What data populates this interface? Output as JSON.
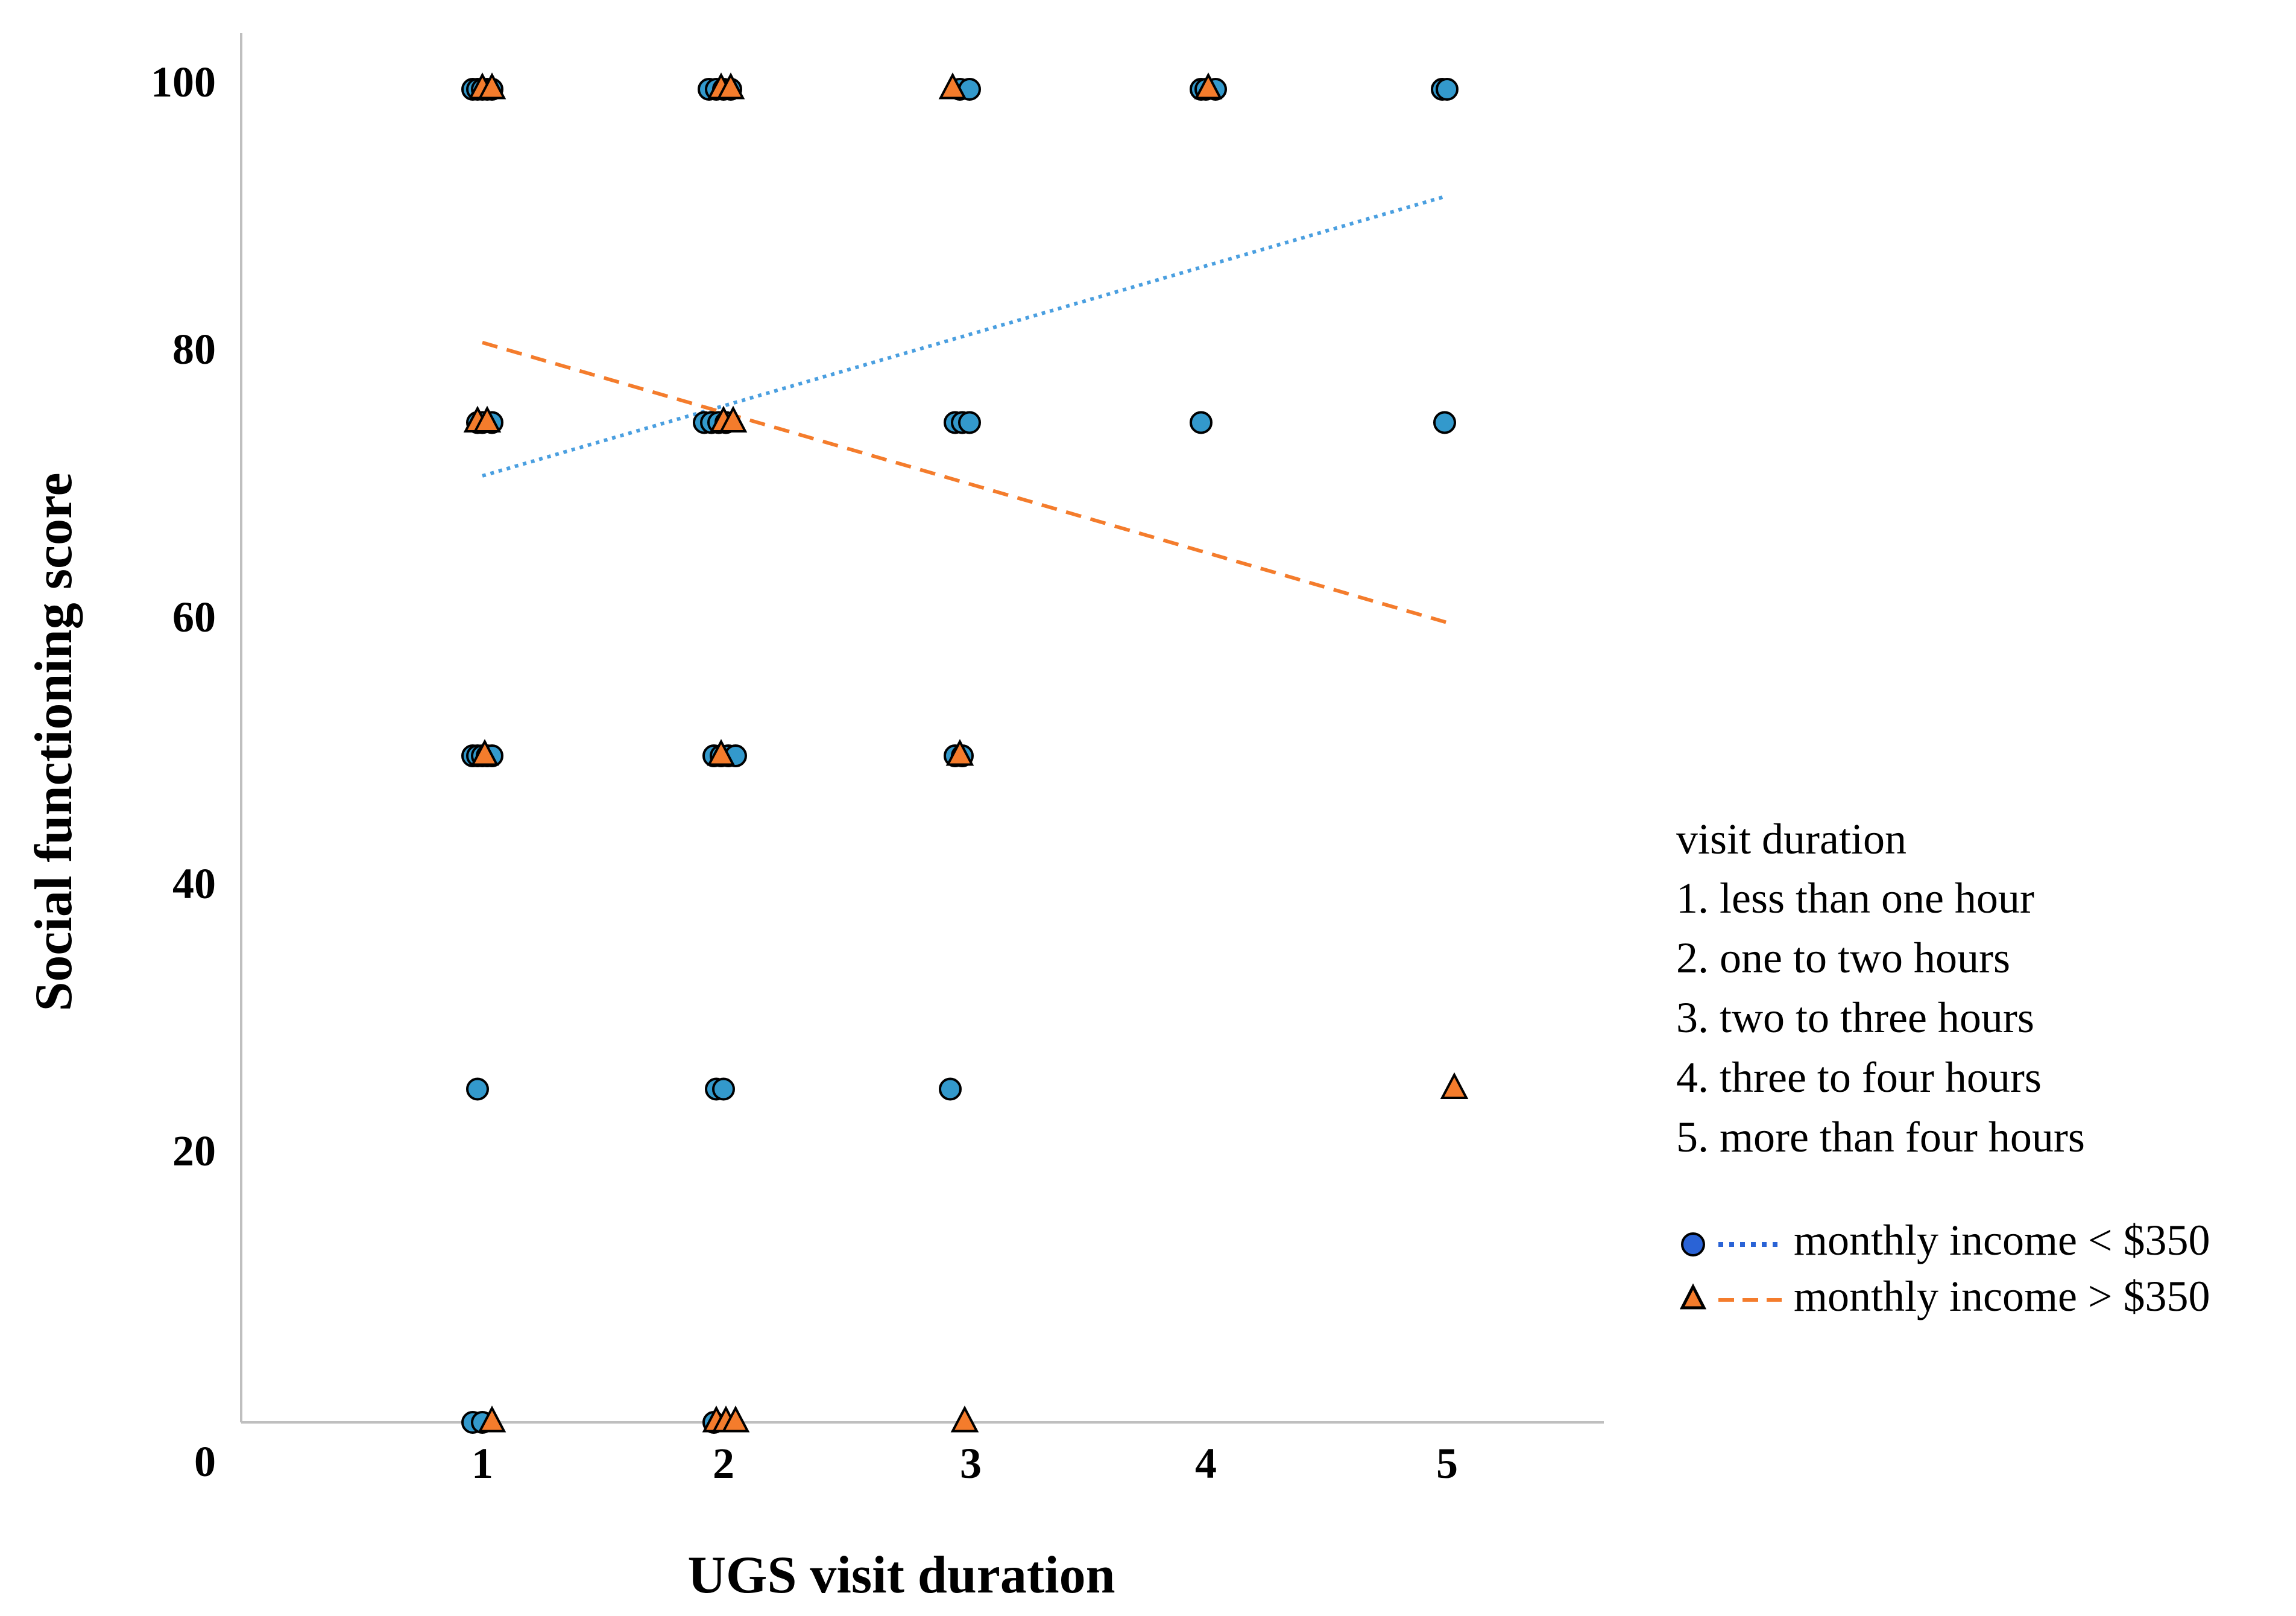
{
  "chart_data": {
    "type": "scatter",
    "title": "",
    "xlabel": "UGS visit duration",
    "ylabel": "Social functioning score",
    "xlim": [
      0,
      5.6
    ],
    "ylim": [
      0,
      100
    ],
    "x_ticks": [
      "1",
      "2",
      "3",
      "4",
      "5"
    ],
    "y_ticks": [
      "0",
      "20",
      "40",
      "60",
      "80",
      "100"
    ],
    "grid": false,
    "legend": {
      "title": "visit duration",
      "levels": [
        "1. less than one hour",
        "2. one to two hours",
        "3. two to three hours",
        "4. three to four hours",
        "5. more than four hours"
      ],
      "series_labels": [
        "monthly income < $350",
        "monthly income > $350"
      ]
    },
    "series": [
      {
        "name": "monthly income < $350",
        "marker": "circle",
        "color": "#3399cc",
        "fit_line_style": "dotted",
        "fit_color": "#4a9fe0",
        "fit": [
          [
            1,
            71
          ],
          [
            5,
            92
          ]
        ],
        "points": [
          [
            0.96,
            100
          ],
          [
            0.98,
            100
          ],
          [
            1.0,
            100
          ],
          [
            1.02,
            100
          ],
          [
            1.04,
            100
          ],
          [
            0.98,
            75
          ],
          [
            1.0,
            75
          ],
          [
            1.04,
            75
          ],
          [
            0.96,
            50
          ],
          [
            0.98,
            50
          ],
          [
            1.0,
            50
          ],
          [
            1.02,
            50
          ],
          [
            1.04,
            50
          ],
          [
            0.98,
            25
          ],
          [
            0.96,
            0
          ],
          [
            1.0,
            0
          ],
          [
            1.94,
            100
          ],
          [
            1.97,
            100
          ],
          [
            2.0,
            100
          ],
          [
            2.03,
            100
          ],
          [
            1.92,
            75
          ],
          [
            1.95,
            75
          ],
          [
            1.98,
            75
          ],
          [
            2.01,
            75
          ],
          [
            1.96,
            50
          ],
          [
            1.99,
            50
          ],
          [
            2.02,
            50
          ],
          [
            2.05,
            50
          ],
          [
            1.97,
            25
          ],
          [
            2.0,
            25
          ],
          [
            1.96,
            0
          ],
          [
            2.98,
            100
          ],
          [
            3.02,
            100
          ],
          [
            2.96,
            75
          ],
          [
            2.99,
            75
          ],
          [
            3.02,
            75
          ],
          [
            2.96,
            50
          ],
          [
            2.99,
            50
          ],
          [
            2.94,
            25
          ],
          [
            3.98,
            100
          ],
          [
            4.0,
            100
          ],
          [
            4.04,
            100
          ],
          [
            3.98,
            75
          ],
          [
            4.98,
            100
          ],
          [
            5.0,
            100
          ],
          [
            4.99,
            75
          ]
        ]
      },
      {
        "name": "monthly income > $350",
        "marker": "triangle",
        "color": "#f47c2c",
        "fit_line_style": "dashed",
        "fit_color": "#f47c2c",
        "fit": [
          [
            1,
            81
          ],
          [
            5,
            60
          ]
        ],
        "points": [
          [
            1.0,
            100
          ],
          [
            1.04,
            100
          ],
          [
            0.98,
            75
          ],
          [
            1.02,
            75
          ],
          [
            1.01,
            50
          ],
          [
            1.04,
            0
          ],
          [
            1.99,
            100
          ],
          [
            2.03,
            100
          ],
          [
            2.0,
            75
          ],
          [
            2.04,
            75
          ],
          [
            1.99,
            50
          ],
          [
            1.97,
            0
          ],
          [
            2.01,
            0
          ],
          [
            2.05,
            0
          ],
          [
            2.95,
            100
          ],
          [
            2.98,
            50
          ],
          [
            3.0,
            0
          ],
          [
            4.01,
            100
          ],
          [
            5.03,
            25
          ]
        ]
      }
    ]
  }
}
